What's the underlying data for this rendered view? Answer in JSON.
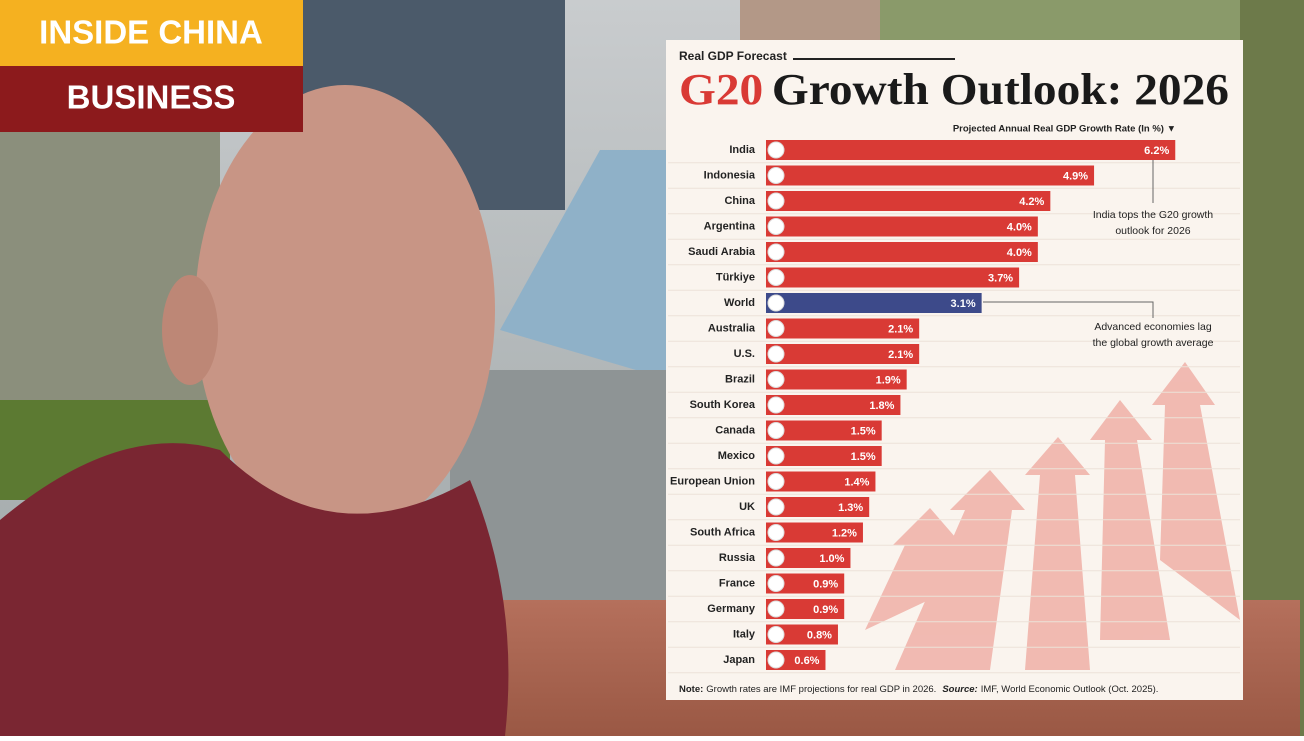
{
  "badge": {
    "line1": "INSIDE CHINA",
    "line2": "BUSINESS"
  },
  "chart_data": {
    "type": "bar",
    "orientation": "horizontal",
    "kicker": "Real GDP Forecast",
    "title_highlight": "G20",
    "title": "Growth Outlook: 2026",
    "axis_label": "Projected Annual Real GDP Growth Rate (In %) ▼",
    "categories": [
      "India",
      "Indonesia",
      "China",
      "Argentina",
      "Saudi Arabia",
      "Türkiye",
      "World",
      "Australia",
      "U.S.",
      "Brazil",
      "South Korea",
      "Canada",
      "Mexico",
      "European Union",
      "UK",
      "South Africa",
      "Russia",
      "France",
      "Germany",
      "Italy",
      "Japan"
    ],
    "values": [
      6.2,
      4.9,
      4.2,
      4.0,
      4.0,
      3.7,
      3.1,
      2.1,
      2.1,
      1.9,
      1.8,
      1.5,
      1.5,
      1.4,
      1.3,
      1.2,
      1.0,
      0.9,
      0.9,
      0.8,
      0.6
    ],
    "value_labels": [
      "6.2%",
      "4.9%",
      "4.2%",
      "4.0%",
      "4.0%",
      "3.7%",
      "3.1%",
      "2.1%",
      "2.1%",
      "1.9%",
      "1.8%",
      "1.5%",
      "1.5%",
      "1.4%",
      "1.3%",
      "1.2%",
      "1.0%",
      "0.9%",
      "0.9%",
      "0.8%",
      "0.6%"
    ],
    "colors": [
      "#d93a35",
      "#d93a35",
      "#d93a35",
      "#d93a35",
      "#d93a35",
      "#d93a35",
      "#3d4a8a",
      "#d93a35",
      "#d93a35",
      "#d93a35",
      "#d93a35",
      "#d93a35",
      "#d93a35",
      "#d93a35",
      "#d93a35",
      "#d93a35",
      "#d93a35",
      "#d93a35",
      "#d93a35",
      "#d93a35",
      "#d93a35"
    ],
    "xlim": [
      0,
      6.5
    ],
    "annotations": [
      "India tops the G20 growth",
      "outlook for 2026",
      "Advanced economies lag",
      "the global growth average"
    ],
    "note_label": "Note:",
    "note": "Growth rates are IMF projections for real GDP in 2026.",
    "source_label": "Source:",
    "source": "IMF, World Economic Outlook (Oct. 2025)."
  }
}
